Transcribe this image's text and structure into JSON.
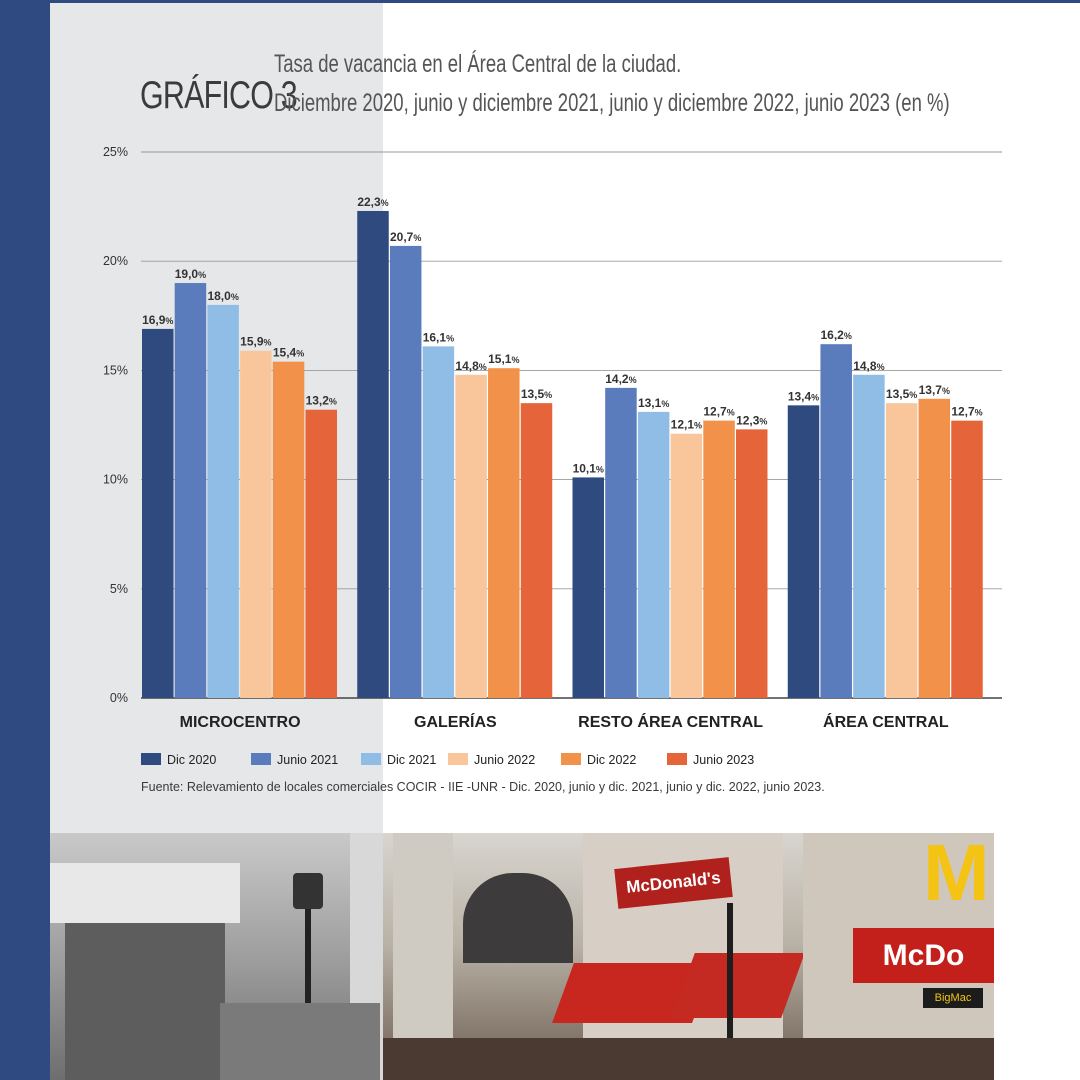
{
  "header": {
    "label": "GRÁFICO 3",
    "title": "Tasa de vacancia en el Área Central de la ciudad.",
    "subtitle": "Diciembre 2020, junio y diciembre 2021, junio y diciembre 2022, junio 2023 (en %)"
  },
  "source": "Fuente: Relevamiento de locales comerciales COCIR - IIE -UNR - Dic. 2020, junio y dic. 2021, junio y dic. 2022, junio 2023.",
  "photo": {
    "sign_1": "McDonald's",
    "sign_2": "McDo",
    "sign_3": "BigMac"
  },
  "chart_data": {
    "type": "bar",
    "title": "Tasa de vacancia en el Área Central de la ciudad.",
    "ylim": [
      0,
      25
    ],
    "yticks": [
      0,
      5,
      10,
      15,
      20,
      25
    ],
    "ytick_labels": [
      "0%",
      "5%",
      "10%",
      "15%",
      "20%",
      "25%"
    ],
    "grid": true,
    "categories": [
      "MICROCENTRO",
      "GALERÍAS",
      "RESTO ÁREA CENTRAL",
      "ÁREA CENTRAL"
    ],
    "series": [
      {
        "name": "Dic 2020",
        "color": "#2f4a7e",
        "values": [
          16.9,
          22.3,
          10.1,
          13.4
        ],
        "labels": [
          "16,9",
          "22,3",
          "10,1",
          "13,4"
        ]
      },
      {
        "name": "Junio 2021",
        "color": "#5a7bbc",
        "values": [
          19.0,
          20.7,
          14.2,
          16.2
        ],
        "labels": [
          "19,0",
          "20,7",
          "14,2",
          "16,2"
        ]
      },
      {
        "name": "Dic 2021",
        "color": "#8fbde6",
        "values": [
          18.0,
          16.1,
          13.1,
          14.8
        ],
        "labels": [
          "18,0",
          "16,1",
          "13,1",
          "14,8"
        ]
      },
      {
        "name": "Junio 2022",
        "color": "#f9c69c",
        "values": [
          15.9,
          14.8,
          12.1,
          13.5
        ],
        "labels": [
          "15,9",
          "14,8",
          "12,1",
          "13,5"
        ]
      },
      {
        "name": "Dic 2022",
        "color": "#f2914a",
        "values": [
          15.4,
          15.1,
          12.7,
          13.7
        ],
        "labels": [
          "15,4",
          "15,1",
          "12,7",
          "13,7"
        ]
      },
      {
        "name": "Junio 2023",
        "color": "#e6643a",
        "values": [
          13.2,
          13.5,
          12.3,
          12.7
        ],
        "labels": [
          "13,2",
          "13,5",
          "12,3",
          "12,7"
        ]
      }
    ],
    "value_suffix": "%",
    "legend": "bottom-left"
  }
}
